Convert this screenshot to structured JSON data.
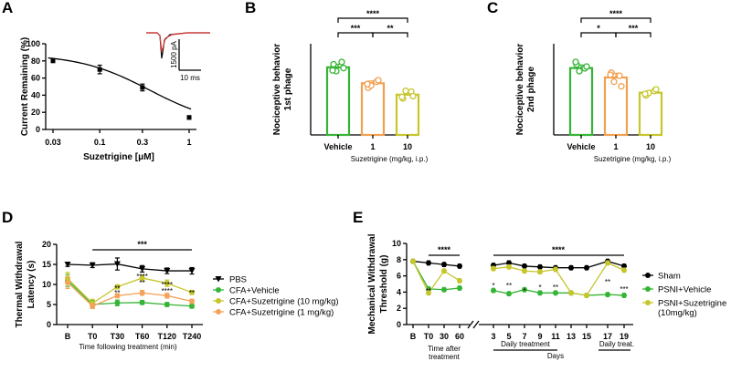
{
  "chart_data": [
    {
      "panel": "A",
      "type": "line",
      "title": "",
      "xlabel": "Suzetrigine [μM]",
      "ylabel": "Current Remaining (%)",
      "x": [
        0.03,
        0.1,
        0.3,
        1
      ],
      "xtick_labels": [
        "0.03",
        "0.1",
        "0.3",
        "1"
      ],
      "y": [
        80,
        70,
        49,
        14
      ],
      "error": [
        1.5,
        5,
        4,
        2
      ],
      "ylim": [
        0,
        100
      ],
      "yticks": [
        0,
        20,
        40,
        60,
        80,
        100
      ],
      "fit": "sigmoid",
      "inset": {
        "scale_y": "1500 pA",
        "scale_x": "10 ms"
      }
    },
    {
      "panel": "B",
      "type": "bar",
      "xlabel": "Suzetrigine (mg/kg, i.p.)",
      "ylabel": "Nociceptive behavior 1st phage",
      "categories": [
        "Vehicle",
        "1",
        "10"
      ],
      "values": [
        89,
        68,
        53
      ],
      "error": [
        4,
        3,
        4
      ],
      "points": [
        [
          93,
          96,
          84,
          88,
          85
        ],
        [
          62,
          70,
          65,
          72,
          67
        ],
        [
          48,
          57,
          58,
          51,
          50
        ]
      ],
      "colors": [
        "#35b535",
        "#f0a050",
        "#c6c62c"
      ],
      "ylim": [
        0,
        120
      ],
      "significance": [
        {
          "pair": [
            0,
            1
          ],
          "label": "***"
        },
        {
          "pair": [
            1,
            2
          ],
          "label": "**"
        },
        {
          "pair": [
            0,
            2
          ],
          "label": "****"
        }
      ]
    },
    {
      "panel": "C",
      "type": "bar",
      "xlabel": "Suzetrigine (mg/kg, i.p.)",
      "ylabel": "Nociceptive behavior 2nd phage",
      "categories": [
        "Vehicle",
        "1",
        "10"
      ],
      "values": [
        220,
        189,
        139
      ],
      "error": [
        10,
        14,
        6
      ],
      "points": [
        [
          232,
          219,
          210,
          225,
          240
        ],
        [
          205,
          195,
          175,
          160,
          198
        ],
        [
          130,
          145,
          138,
          150,
          135
        ]
      ],
      "colors": [
        "#35b535",
        "#f0a050",
        "#c6c62c"
      ],
      "ylim": [
        0,
        300
      ],
      "significance": [
        {
          "pair": [
            0,
            1
          ],
          "label": "*"
        },
        {
          "pair": [
            1,
            2
          ],
          "label": "***"
        },
        {
          "pair": [
            0,
            2
          ],
          "label": "****"
        }
      ]
    },
    {
      "panel": "D",
      "type": "line",
      "xlabel": "Time following treatment (min)",
      "ylabel": "Thermal Withdrawal Latency (s)",
      "categories": [
        "B",
        "T0",
        "T30",
        "T60",
        "T120",
        "T240"
      ],
      "ylim": [
        0,
        20
      ],
      "yticks": [
        0,
        5,
        10,
        15,
        20
      ],
      "series": [
        {
          "name": "PBS",
          "color": "#000000",
          "marker": "triangle-down",
          "values": [
            15,
            14.8,
            15.1,
            13.9,
            13.4,
            13.4
          ],
          "error": [
            0.5,
            0.6,
            1.5,
            0.8,
            0.7,
            0.8
          ]
        },
        {
          "name": "CFA+Vehicle",
          "color": "#35b535",
          "marker": "circle",
          "values": [
            11,
            5,
            5.4,
            5.5,
            5,
            4.6
          ],
          "error": [
            1.5,
            1,
            0.7,
            0.5,
            0.5,
            0.5
          ]
        },
        {
          "name": "CFA+Suzetrigine (10 mg/kg)",
          "color": "#c6c62c",
          "marker": "circle",
          "values": [
            11.5,
            5.3,
            9.4,
            11.6,
            10.3,
            8
          ],
          "error": [
            1.5,
            1,
            0.5,
            0.7,
            0.8,
            0.5
          ]
        },
        {
          "name": "CFA+Suzetrigine (1 mg/kg)",
          "color": "#f5a35a",
          "marker": "circle",
          "values": [
            10.5,
            4.6,
            7.2,
            7.9,
            7.2,
            5.8
          ],
          "error": [
            1.5,
            0.6,
            0.5,
            0.6,
            0.6,
            0.5
          ]
        }
      ],
      "annotations": {
        "bracket": "***",
        "stars": [
          "**",
          "**",
          "****",
          "**",
          "****",
          "****",
          "**"
        ]
      }
    },
    {
      "panel": "E",
      "type": "line",
      "xlabel": "Days",
      "ylabel": "Mechanical Withdrawal Threshold (g)",
      "categories": [
        "B",
        "T0",
        "30",
        "60",
        "3",
        "5",
        "7",
        "9",
        "11",
        "13",
        "15",
        "17",
        "19"
      ],
      "ylim": [
        0,
        10
      ],
      "yticks": [
        0,
        2,
        4,
        6,
        8,
        10
      ],
      "series": [
        {
          "name": "Sham",
          "color": "#000000",
          "marker": "circle",
          "values": [
            7.8,
            7.6,
            7.4,
            7.2,
            7.3,
            7.6,
            7.2,
            7.1,
            7,
            7,
            7,
            7.8,
            7.2
          ]
        },
        {
          "name": "PSNI+Vehicle",
          "color": "#35b535",
          "marker": "circle",
          "values": [
            7.8,
            4.4,
            4.3,
            4.5,
            4.2,
            3.8,
            4.3,
            3.9,
            3.9,
            3.9,
            3.6,
            3.7,
            3.6
          ]
        },
        {
          "name": "PSNI+Suzetrigine (10mg/kg)",
          "color": "#c6c62c",
          "marker": "circle",
          "values": [
            7.8,
            3.9,
            6.6,
            5.4,
            6.9,
            7.1,
            6.6,
            6.5,
            6.8,
            3.9,
            3.6,
            7.6,
            6.7
          ]
        }
      ],
      "annotations": {
        "bracket_left": "****",
        "bracket_right": "****",
        "daily_treatment": "Daily treatment",
        "daily_treat_short": "Daily treat.",
        "time_after": "Time after",
        "treatment": "treatment",
        "stars": [
          "**",
          "*",
          "**",
          "*",
          "*",
          "**",
          "**",
          "***"
        ]
      }
    }
  ]
}
